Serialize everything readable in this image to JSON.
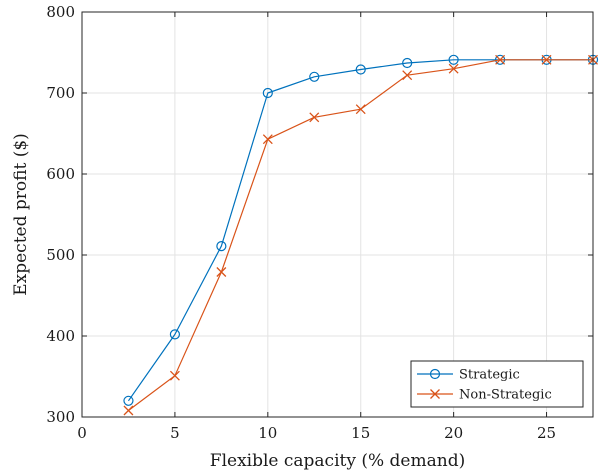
{
  "chart_data": {
    "type": "line",
    "title": "",
    "xlabel": "Flexible capacity (% demand)",
    "ylabel": "Expected profit ($)",
    "xlim": [
      0,
      27.5
    ],
    "ylim": [
      300,
      800
    ],
    "xticks": [
      0,
      5,
      10,
      15,
      20,
      25
    ],
    "yticks": [
      300,
      400,
      500,
      600,
      700,
      800
    ],
    "grid": true,
    "legend_position": "bottom-right",
    "x": [
      2.5,
      5,
      7.5,
      10,
      12.5,
      15,
      17.5,
      20,
      22.5,
      25,
      27.5
    ],
    "series": [
      {
        "name": "Strategic",
        "marker": "circle",
        "color": "#0072BD",
        "values": [
          320,
          402,
          511,
          700,
          720,
          729,
          737,
          741,
          741,
          741,
          741
        ]
      },
      {
        "name": "Non-Strategic",
        "marker": "x",
        "color": "#D95319",
        "values": [
          308,
          351,
          479,
          643,
          670,
          680,
          722,
          730,
          741,
          741,
          741
        ]
      }
    ]
  }
}
